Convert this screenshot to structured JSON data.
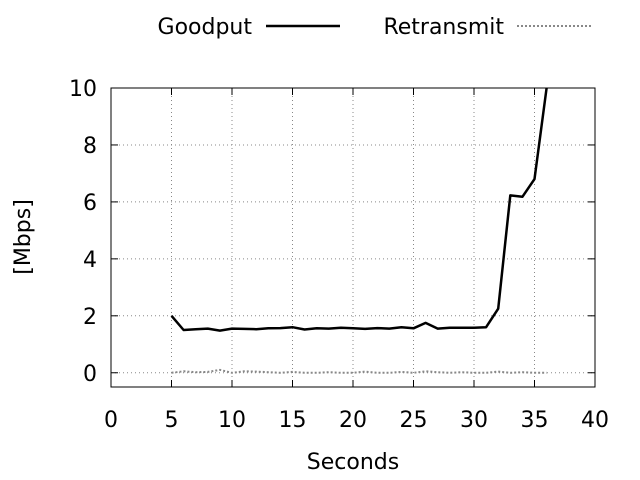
{
  "chart_data": {
    "type": "line",
    "xlabel": "Seconds",
    "ylabel": "[Mbps]",
    "xlim": [
      0,
      40
    ],
    "ylim": [
      -0.5,
      10
    ],
    "xticks": [
      0,
      5,
      10,
      15,
      20,
      25,
      30,
      35,
      40
    ],
    "yticks": [
      0,
      2,
      4,
      6,
      8,
      10
    ],
    "grid": true,
    "legend_position": "top-outside",
    "series": [
      {
        "name": "Goodput",
        "color": "#000000",
        "style": "solid",
        "x": [
          5,
          6,
          7,
          8,
          9,
          10,
          11,
          12,
          13,
          14,
          15,
          16,
          17,
          18,
          19,
          20,
          21,
          22,
          23,
          24,
          25,
          26,
          27,
          28,
          29,
          30,
          31,
          32,
          33,
          34,
          35,
          36
        ],
        "y": [
          2.0,
          1.5,
          1.53,
          1.55,
          1.48,
          1.55,
          1.54,
          1.53,
          1.56,
          1.57,
          1.6,
          1.52,
          1.56,
          1.55,
          1.58,
          1.56,
          1.54,
          1.57,
          1.55,
          1.6,
          1.56,
          1.75,
          1.55,
          1.58,
          1.58,
          1.58,
          1.6,
          2.25,
          6.23,
          6.18,
          6.8,
          10.0
        ]
      },
      {
        "name": "Retransmit",
        "color": "#888888",
        "style": "dashed",
        "x": [
          5,
          6,
          7,
          8,
          9,
          10,
          11,
          12,
          13,
          14,
          15,
          16,
          17,
          18,
          19,
          20,
          21,
          22,
          23,
          24,
          25,
          26,
          27,
          28,
          29,
          30,
          31,
          32,
          33,
          34,
          35,
          36
        ],
        "y": [
          0.0,
          0.05,
          0.02,
          0.03,
          0.1,
          0.0,
          0.05,
          0.04,
          0.02,
          0.0,
          0.03,
          0.0,
          0.0,
          0.02,
          0.0,
          0.0,
          0.04,
          0.0,
          0.0,
          0.03,
          0.0,
          0.05,
          0.02,
          0.0,
          0.02,
          0.0,
          0.0,
          0.04,
          0.0,
          0.02,
          0.0,
          0.0
        ]
      }
    ]
  }
}
